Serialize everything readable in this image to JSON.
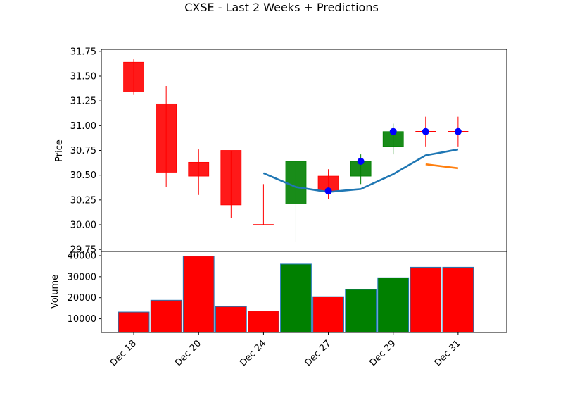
{
  "chart_data": {
    "type": "candlestick",
    "title": "CXSE - Last 2 Weeks + Predictions",
    "x_tick_labels": [
      "Dec 18",
      "Dec 20",
      "Dec 24",
      "Dec 27",
      "Dec 29",
      "Dec 31"
    ],
    "x_tick_indices": [
      1,
      3,
      5,
      7,
      9,
      11
    ],
    "price_panel": {
      "ylabel": "Price",
      "ylim": [
        29.73,
        31.77
      ],
      "yticks": [
        29.75,
        30.0,
        30.25,
        30.5,
        30.75,
        31.0,
        31.25,
        31.5,
        31.75
      ],
      "ytick_labels": [
        "29.75",
        "30.00",
        "30.25",
        "30.50",
        "30.75",
        "31.00",
        "31.25",
        "31.50",
        "31.75"
      ],
      "candles": [
        {
          "index": 1,
          "open": 31.64,
          "high": 31.67,
          "low": 31.31,
          "close": 31.34,
          "color": "red"
        },
        {
          "index": 2,
          "open": 31.22,
          "high": 31.4,
          "low": 30.38,
          "close": 30.53,
          "color": "red"
        },
        {
          "index": 3,
          "open": 30.63,
          "high": 30.76,
          "low": 30.3,
          "close": 30.49,
          "color": "red"
        },
        {
          "index": 4,
          "open": 30.75,
          "high": 30.75,
          "low": 30.07,
          "close": 30.2,
          "color": "red"
        },
        {
          "index": 5,
          "open": 30.0,
          "high": 30.41,
          "low": 30.0,
          "close": 30.0,
          "color": "red"
        },
        {
          "index": 6,
          "open": 30.21,
          "high": 30.64,
          "low": 29.82,
          "close": 30.64,
          "color": "green"
        },
        {
          "index": 7,
          "open": 30.49,
          "high": 30.56,
          "low": 30.26,
          "close": 30.34,
          "color": "red"
        },
        {
          "index": 8,
          "open": 30.49,
          "high": 30.71,
          "low": 30.41,
          "close": 30.64,
          "color": "green"
        },
        {
          "index": 9,
          "open": 30.79,
          "high": 31.02,
          "low": 30.71,
          "close": 30.94,
          "color": "green"
        },
        {
          "index": 10,
          "open": 30.94,
          "high": 31.09,
          "low": 30.79,
          "close": 30.94,
          "color": "red"
        },
        {
          "index": 11,
          "open": 30.94,
          "high": 31.09,
          "low": 30.79,
          "close": 30.94,
          "color": "red"
        }
      ],
      "markers": [
        {
          "index": 7,
          "value": 30.34
        },
        {
          "index": 8,
          "value": 30.64
        },
        {
          "index": 9,
          "value": 30.94
        },
        {
          "index": 10,
          "value": 30.94
        },
        {
          "index": 11,
          "value": 30.94
        }
      ],
      "series": [
        {
          "color": "#1f77b4",
          "points": [
            [
              5,
              30.52
            ],
            [
              6,
              30.38
            ],
            [
              7,
              30.33
            ],
            [
              8,
              30.36
            ],
            [
              9,
              30.51
            ],
            [
              10,
              30.7
            ],
            [
              11,
              30.76
            ]
          ]
        },
        {
          "color": "#ff7f0e",
          "points": [
            [
              10,
              30.61
            ],
            [
              11,
              30.57
            ]
          ]
        }
      ]
    },
    "volume_panel": {
      "ylabel": "Volume",
      "ylim": [
        3500,
        42000
      ],
      "yticks": [
        10000,
        20000,
        30000,
        40000
      ],
      "ytick_labels": [
        "10000",
        "20000",
        "30000",
        "40000"
      ],
      "bars": [
        {
          "index": 1,
          "value": 13200,
          "color": "red"
        },
        {
          "index": 2,
          "value": 18800,
          "color": "red"
        },
        {
          "index": 3,
          "value": 39800,
          "color": "red"
        },
        {
          "index": 4,
          "value": 15800,
          "color": "red"
        },
        {
          "index": 5,
          "value": 13700,
          "color": "red"
        },
        {
          "index": 6,
          "value": 36000,
          "color": "green"
        },
        {
          "index": 7,
          "value": 20500,
          "color": "red"
        },
        {
          "index": 8,
          "value": 24000,
          "color": "green"
        },
        {
          "index": 9,
          "value": 29500,
          "color": "green"
        },
        {
          "index": 10,
          "value": 34500,
          "color": "red"
        },
        {
          "index": 11,
          "value": 34500,
          "color": "red"
        }
      ]
    },
    "colors": {
      "up": "#008000",
      "down": "#ff0000",
      "marker": "#0000ff",
      "bar_edge": "#1f77b4"
    },
    "grid": false
  }
}
